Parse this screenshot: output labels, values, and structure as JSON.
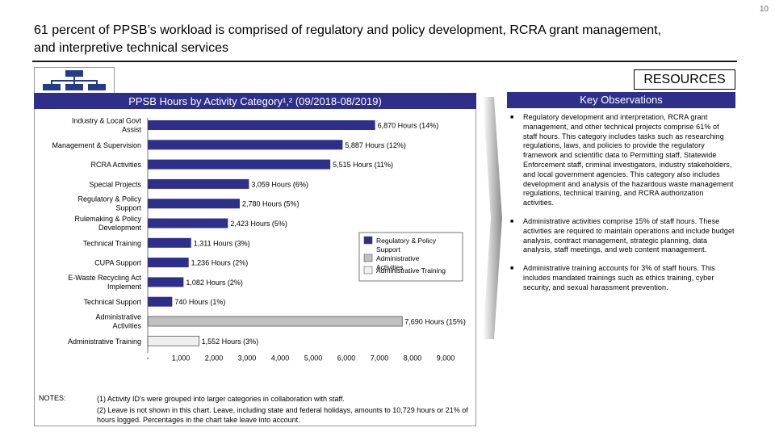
{
  "page_number": "10",
  "title": "61 percent of PPSB’s workload is comprised of regulatory and policy development, RCRA grant management, and interpretive technical services",
  "resources_label": "RESOURCES",
  "chart_header": "PPSB Hours by Activity Category¹,² (09/2018-08/2019)",
  "observations": {
    "header": "Key Observations",
    "items": [
      "Regulatory development and interpretation, RCRA grant management, and other technical projects comprise 61% of staff hours. This category includes tasks such as researching regulations, laws, and policies to provide the regulatory framework and scientific data to Permitting staff, Statewide Enforcement staff, criminal investigators, industry stakeholders, and local government agencies. This category also includes development and analysis of the hazardous waste management regulations, technical training, and RCRA authorization activities.",
      "Administrative activities comprise 15% of staff hours. These activities are required to maintain operations and include budget analysis, contract management, strategic planning, data analysis, staff meetings, and web content management.",
      "Administrative training accounts for 3% of staff hours. This includes mandated trainings such as ethics training, cyber security, and sexual harassment prevention."
    ]
  },
  "notes": {
    "label": "NOTES:",
    "items": [
      "(1) Activity ID’s were grouped into larger categories in collaboration with staff.",
      "(2) Leave is not shown in this chart. Leave, including state and federal holidays, amounts to 10,729 hours or 21% of hours logged. Percentages in the chart take leave into account."
    ]
  },
  "chart_data": {
    "type": "bar",
    "orientation": "horizontal",
    "title": "PPSB Hours by Activity Category¹,² (09/2018-08/2019)",
    "categories": [
      "Industry & Local Govt Assist",
      "Management & Supervision",
      "RCRA Activities",
      "Special Projects",
      "Regulatory & Policy Support",
      "Rulemaking & Policy Development",
      "Technical Training",
      "CUPA Support",
      "E-Waste Recycling Act Implement",
      "Technical Support",
      "Administrative Activities",
      "Administrative Training"
    ],
    "values": [
      6870,
      5887,
      5515,
      3059,
      2780,
      2423,
      1311,
      1236,
      1082,
      740,
      7690,
      1552
    ],
    "data_labels": [
      "6,870 Hours (14%)",
      "5,887 Hours (12%)",
      "5,515 Hours (11%)",
      "3,059 Hours (6%)",
      "2,780 Hours (5%)",
      "2,423 Hours (5%)",
      "1,311 Hours (3%)",
      "1,236 Hours (2%)",
      "1,082 Hours (2%)",
      "740 Hours (1%)",
      "7,690 Hours (15%)",
      "1,552 Hours (3%)"
    ],
    "groups": [
      "Regulatory & Policy Support",
      "Regulatory & Policy Support",
      "Regulatory & Policy Support",
      "Regulatory & Policy Support",
      "Regulatory & Policy Support",
      "Regulatory & Policy Support",
      "Regulatory & Policy Support",
      "Regulatory & Policy Support",
      "Regulatory & Policy Support",
      "Regulatory & Policy Support",
      "Administrative Activities",
      "Administrative Training"
    ],
    "legend": [
      {
        "name": "Regulatory & Policy Support",
        "color": "#2e2f8a"
      },
      {
        "name": "Administrative Activities",
        "color": "#c0c0c0"
      },
      {
        "name": "Administrative Training",
        "color": "#f0f0f0"
      }
    ],
    "x_ticks": [
      "-",
      "1,000",
      "2,000",
      "3,000",
      "4,000",
      "5,000",
      "6,000",
      "7,000",
      "8,000",
      "9,000"
    ],
    "xlim": [
      0,
      9000
    ],
    "grid": false,
    "legend_position": "right"
  }
}
